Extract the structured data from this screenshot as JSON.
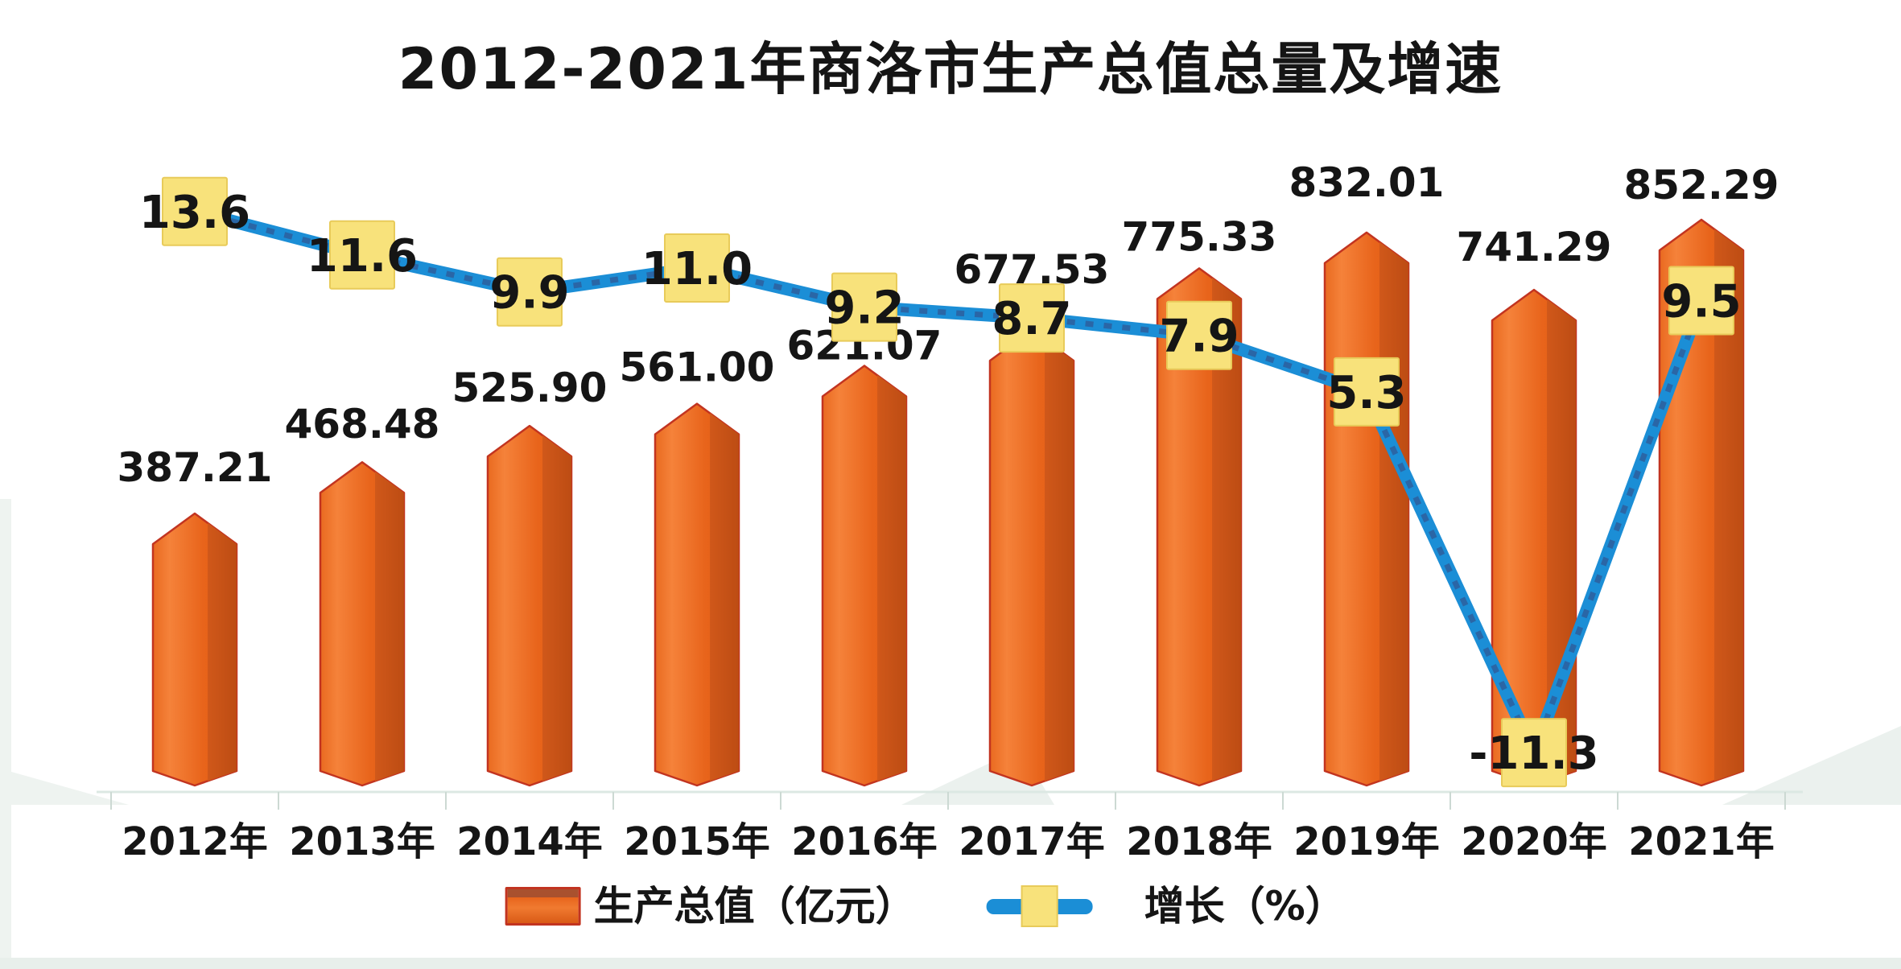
{
  "chart_data": {
    "type": "bar",
    "title": "2012-2021年商洛市生产总值总量及增速",
    "xlabel": "",
    "ylabel": "",
    "grid": false,
    "value_axis": "hidden",
    "legend_position": "bottom",
    "categories": [
      "2012年",
      "2013年",
      "2014年",
      "2015年",
      "2016年",
      "2017年",
      "2018年",
      "2019年",
      "2020年",
      "2021年"
    ],
    "series": [
      {
        "name": "生产总值（亿元）",
        "kind": "bar",
        "values": [
          387.21,
          468.48,
          525.9,
          561.0,
          621.07,
          677.53,
          775.33,
          832.01,
          741.29,
          852.29
        ],
        "labels": [
          "387.21",
          "468.48",
          "525.90",
          "561.00",
          "621.07",
          "677.53",
          "775.33",
          "832.01",
          "741.29",
          "852.29"
        ],
        "color": "#e8651c",
        "side_color": "#c4511a",
        "outline_color": "#c23420"
      },
      {
        "name": "增长（%）",
        "kind": "line",
        "values": [
          13.6,
          11.6,
          9.9,
          11.0,
          9.2,
          8.7,
          7.9,
          5.3,
          -11.3,
          9.5
        ],
        "labels": [
          "13.6",
          "11.6",
          "9.9",
          "11.0",
          "9.2",
          "8.7",
          "7.9",
          "5.3",
          "-11.3",
          "9.5"
        ],
        "color": "#1b8ed6",
        "dash_color": "#2d5f9e",
        "marker_color": "#f8e27b",
        "marker_border": "#e8cb5a"
      }
    ],
    "label_color": "#151515",
    "axis_color": "#dce8e3"
  }
}
